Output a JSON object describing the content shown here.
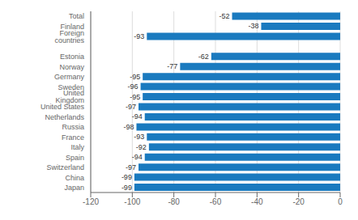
{
  "chart_data": {
    "type": "bar",
    "orientation": "horizontal",
    "categories": [
      "Japan",
      "China",
      "Switzerland",
      "Spain",
      "Italy",
      "France",
      "Russia",
      "Netherlands",
      "United States",
      "United Kingdom",
      "Sweden",
      "Germany",
      "Norway",
      "Estonia",
      null,
      "Foreign countries",
      "Finland",
      "Total"
    ],
    "values": [
      -99,
      -99,
      -97,
      -94,
      -92,
      -93,
      -98,
      -94,
      -97,
      -95,
      -96,
      -95,
      -77,
      -62,
      null,
      -93,
      -38,
      -52
    ],
    "color": "#1a7abf",
    "xlim": [
      -120,
      0
    ],
    "xticks": [
      -120,
      -100,
      -80,
      -60,
      -40,
      -20,
      0
    ],
    "grid": true,
    "data_labels": true
  }
}
